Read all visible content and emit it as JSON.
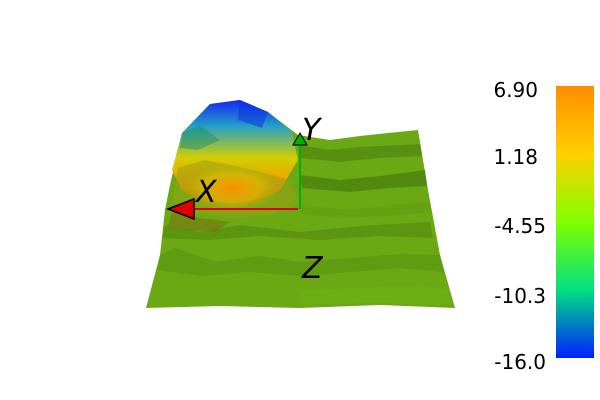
{
  "scene": {
    "axis_labels": {
      "x": "X",
      "y": "Y",
      "z": "Z"
    },
    "axis_colors": {
      "x": "#e00000",
      "y": "#00b000",
      "z": "#000000"
    },
    "surface_colormap": "rainbow (blue-green-yellow-orange)"
  },
  "colorbar": {
    "ticks": [
      "6.90",
      "1.18",
      "-4.55",
      "-10.3",
      "-16.0"
    ],
    "range": [
      -16.0,
      6.9
    ],
    "colors": [
      "#ff8c00",
      "#ffd000",
      "#80ff00",
      "#00e080",
      "#0020ff"
    ]
  }
}
